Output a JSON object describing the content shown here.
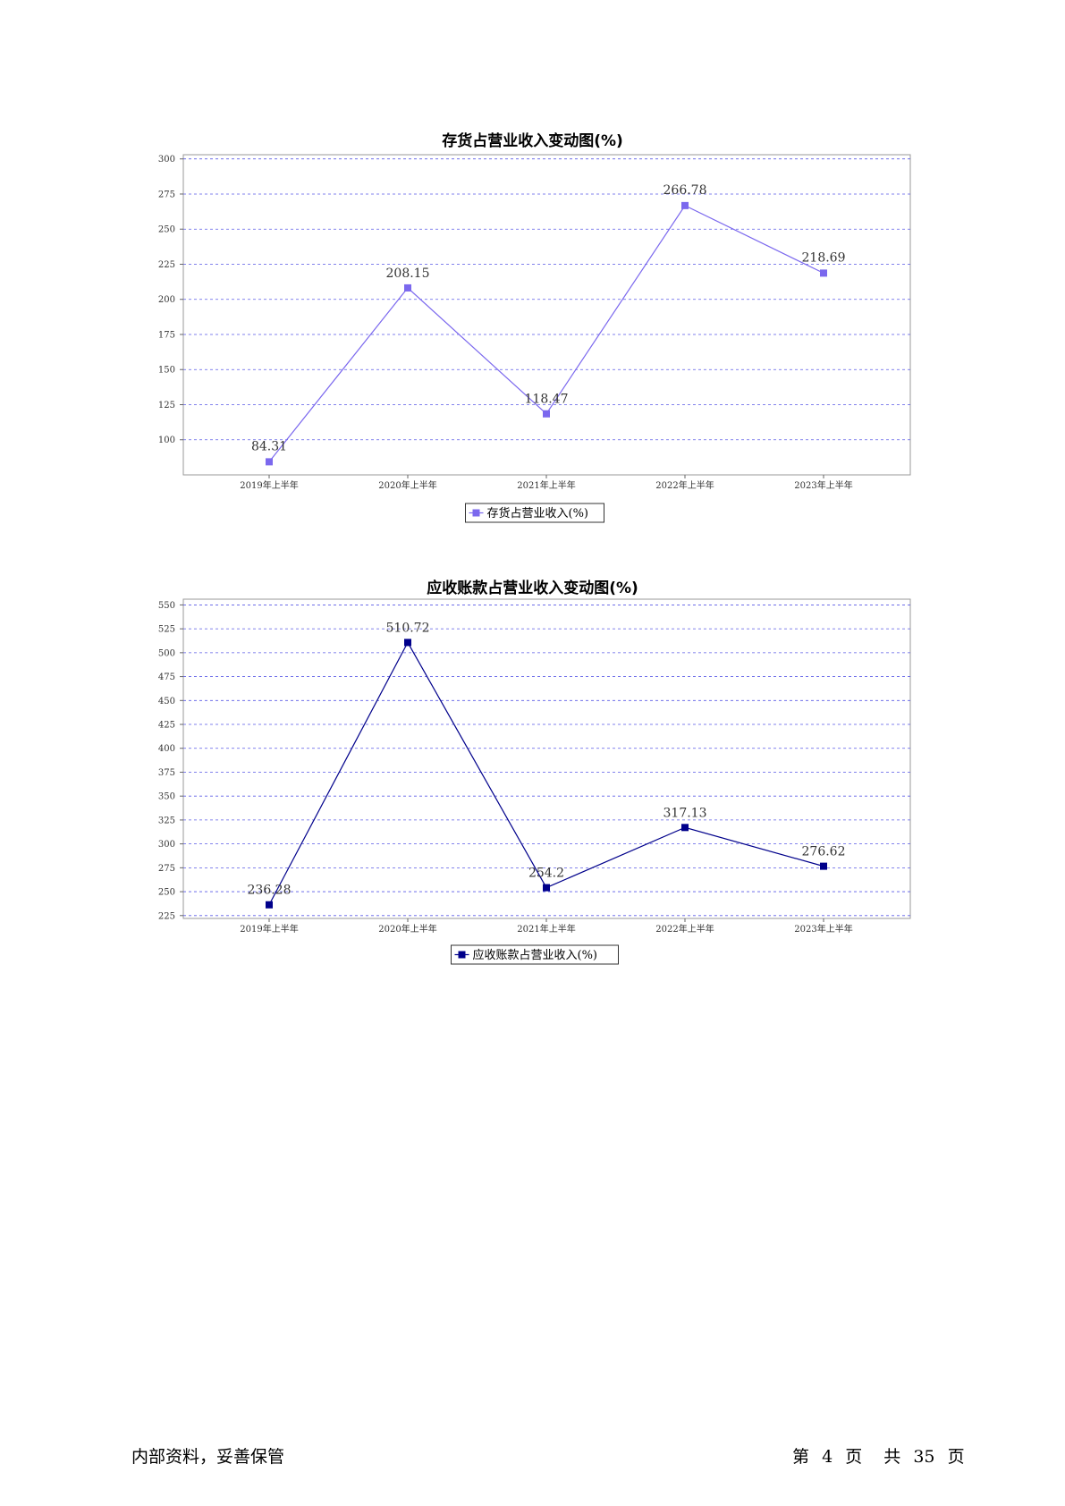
{
  "chart_data": [
    {
      "type": "line",
      "title": "存货占营业收入变动图(%)",
      "categories": [
        "2019年上半年",
        "2020年上半年",
        "2021年上半年",
        "2022年上半年",
        "2023年上半年"
      ],
      "series": [
        {
          "name": "存货占营业收入(%)",
          "values": [
            84.31,
            208.15,
            118.47,
            266.78,
            218.69
          ],
          "labels": [
            "84.31",
            "208.15",
            "118.47",
            "266.78",
            "218.69"
          ]
        }
      ],
      "yticks": [
        100,
        125,
        150,
        175,
        200,
        225,
        250,
        275,
        300
      ],
      "ylim": [
        75,
        303
      ],
      "grid": true,
      "legend_position": "bottom-center",
      "color": "#7B68EE"
    },
    {
      "type": "line",
      "title": "应收账款占营业收入变动图(%)",
      "categories": [
        "2019年上半年",
        "2020年上半年",
        "2021年上半年",
        "2022年上半年",
        "2023年上半年"
      ],
      "series": [
        {
          "name": "应收账款占营业收入(%)",
          "values": [
            236.28,
            510.72,
            254.2,
            317.13,
            276.62
          ],
          "labels": [
            "236.28",
            "510.72",
            "254.2",
            "317.13",
            "276.62"
          ]
        }
      ],
      "yticks": [
        225,
        250,
        275,
        300,
        325,
        350,
        375,
        400,
        425,
        450,
        475,
        500,
        525,
        550
      ],
      "ylim": [
        222,
        556
      ],
      "grid": true,
      "legend_position": "bottom-center",
      "color": "#00008B"
    }
  ],
  "footer": {
    "left": "内部资料，妥善保管",
    "page_prefix": "第",
    "page_number": "4",
    "page_suffix": "页",
    "total_prefix": "共",
    "total_pages": "35",
    "total_suffix": "页"
  }
}
